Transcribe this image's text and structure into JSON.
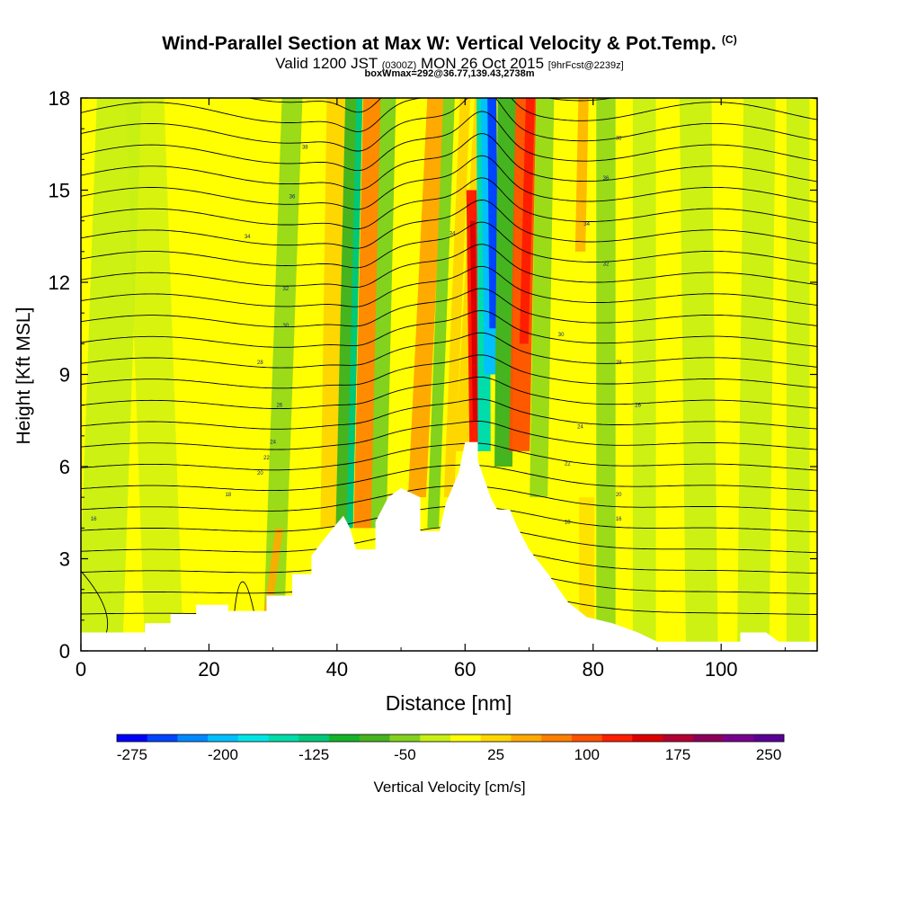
{
  "header": {
    "title": "Wind-Parallel Section at Max W: Vertical Velocity & Pot.Temp.",
    "title_mark": "(C)",
    "valid_prefix": "Valid 1200 JST",
    "valid_utc": "(0300Z)",
    "valid_date": "MON 26 Oct 2015",
    "forecast_tag": "[9hrFcst@2239z]",
    "box_info": "boxWmax=292@36.77,139.43,2738m"
  },
  "chart_data": {
    "type": "heatmap",
    "title": "Wind-Parallel Section at Max W: Vertical Velocity & Pot.Temp.",
    "xlabel": "Distance [nm]",
    "ylabel": "Height [Kft MSL]",
    "xlim": [
      0,
      115
    ],
    "ylim": [
      0,
      18
    ],
    "x_ticks": [
      "0",
      "20",
      "40",
      "60",
      "80",
      "100"
    ],
    "y_ticks": [
      "0",
      "3",
      "6",
      "9",
      "12",
      "15",
      "18"
    ],
    "colorbar": {
      "label": "Vertical Velocity [cm/s]",
      "tick_labels": [
        "-275",
        "-200",
        "-125",
        "-50",
        "25",
        "100",
        "175",
        "250"
      ],
      "colors": [
        "#0000ff",
        "#0044ff",
        "#0088ff",
        "#00c0ff",
        "#00e6e6",
        "#00dcaa",
        "#00c878",
        "#14b428",
        "#46b41e",
        "#82d21e",
        "#c8f014",
        "#ffff00",
        "#ffd700",
        "#ffaa00",
        "#ff8000",
        "#ff5000",
        "#ff1e00",
        "#dc0000",
        "#b40032",
        "#8c005a",
        "#78008c",
        "#5a0096"
      ]
    },
    "terrain_profile_nm_kft": [
      [
        0,
        0.6
      ],
      [
        10,
        0.6
      ],
      [
        10,
        0.9
      ],
      [
        14,
        0.9
      ],
      [
        14,
        1.2
      ],
      [
        18,
        1.2
      ],
      [
        18,
        1.5
      ],
      [
        23,
        1.5
      ],
      [
        23,
        1.3
      ],
      [
        29,
        1.3
      ],
      [
        29,
        1.8
      ],
      [
        33,
        1.8
      ],
      [
        33,
        2.5
      ],
      [
        36,
        2.5
      ],
      [
        36,
        3.1
      ],
      [
        39,
        3.9
      ],
      [
        41,
        4.4
      ],
      [
        42,
        4.0
      ],
      [
        43,
        3.3
      ],
      [
        46,
        3.3
      ],
      [
        46,
        4.2
      ],
      [
        48,
        5.0
      ],
      [
        50,
        5.3
      ],
      [
        53,
        5.0
      ],
      [
        53,
        3.9
      ],
      [
        56,
        3.9
      ],
      [
        57,
        4.8
      ],
      [
        59,
        5.8
      ],
      [
        60,
        6.8
      ],
      [
        62,
        6.8
      ],
      [
        62,
        6.2
      ],
      [
        64,
        5.0
      ],
      [
        65,
        4.6
      ],
      [
        67,
        4.6
      ],
      [
        68,
        4.1
      ],
      [
        70,
        3.3
      ],
      [
        73,
        2.5
      ],
      [
        76,
        1.6
      ],
      [
        79,
        1.1
      ],
      [
        83,
        0.9
      ],
      [
        87,
        0.6
      ],
      [
        90,
        0.3
      ],
      [
        103,
        0.3
      ],
      [
        103,
        0.6
      ],
      [
        107,
        0.6
      ],
      [
        109,
        0.3
      ],
      [
        115,
        0.3
      ]
    ],
    "theta_contours_c": [
      {
        "label": "16",
        "x": 2,
        "y": 4.3
      },
      {
        "label": "16",
        "x": 84,
        "y": 4.3
      },
      {
        "label": "18",
        "x": 23,
        "y": 5.1
      },
      {
        "label": "18",
        "x": 76,
        "y": 4.2
      },
      {
        "label": "20",
        "x": 28,
        "y": 5.8
      },
      {
        "label": "20",
        "x": 84,
        "y": 5.1
      },
      {
        "label": "22",
        "x": 29,
        "y": 6.3
      },
      {
        "label": "22",
        "x": 76,
        "y": 6.1
      },
      {
        "label": "24",
        "x": 30,
        "y": 6.8
      },
      {
        "label": "24",
        "x": 78,
        "y": 7.3
      },
      {
        "label": "26",
        "x": 31,
        "y": 8.0
      },
      {
        "label": "26",
        "x": 87,
        "y": 8.0
      },
      {
        "label": "28",
        "x": 28,
        "y": 9.4
      },
      {
        "label": "28",
        "x": 84,
        "y": 9.4
      },
      {
        "label": "30",
        "x": 32,
        "y": 10.6
      },
      {
        "label": "30",
        "x": 75,
        "y": 10.3
      },
      {
        "label": "32",
        "x": 32,
        "y": 11.8
      },
      {
        "label": "32",
        "x": 82,
        "y": 12.6
      },
      {
        "label": "34",
        "x": 26,
        "y": 13.5
      },
      {
        "label": "34",
        "x": 79,
        "y": 13.9
      },
      {
        "label": "34",
        "x": 58,
        "y": 13.6
      },
      {
        "label": "36",
        "x": 33,
        "y": 14.8
      },
      {
        "label": "36",
        "x": 82,
        "y": 15.4
      },
      {
        "label": "38",
        "x": 35,
        "y": 16.4
      },
      {
        "label": "38",
        "x": 84,
        "y": 16.7
      }
    ]
  }
}
